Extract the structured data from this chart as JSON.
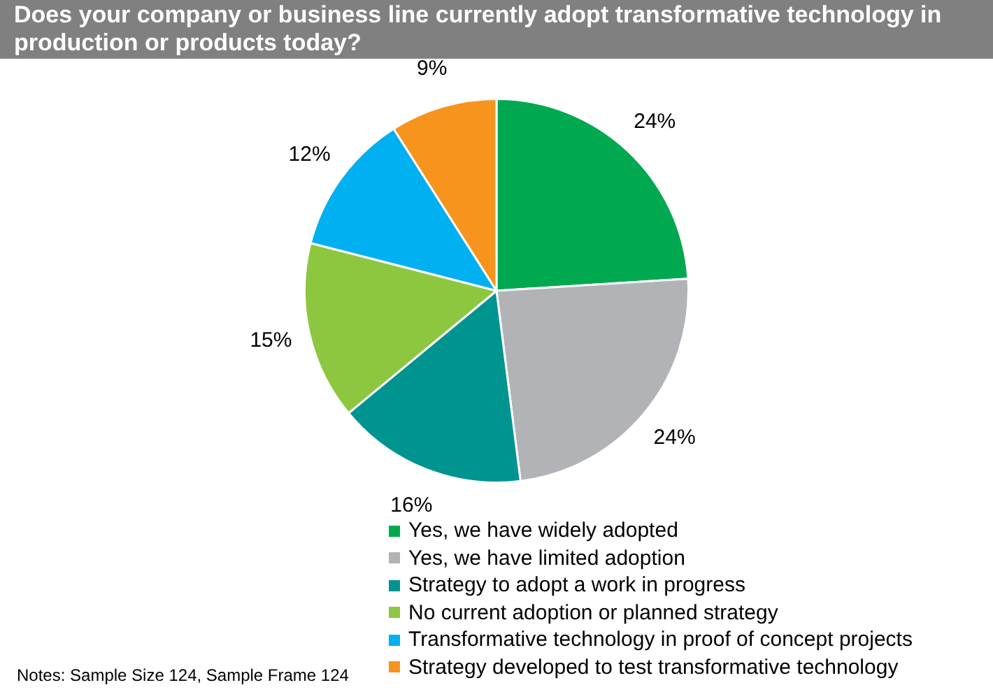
{
  "chart_data": {
    "type": "pie",
    "title": "Does your company or business line currently adopt transformative technology in production or products today?",
    "categories": [
      "Yes, we have widely adopted",
      "Yes, we have limited adoption",
      "Strategy to adopt a work in progress",
      "No current adoption or planned strategy",
      "Transformative technology in proof of concept projects",
      "Strategy developed to test transformative technology"
    ],
    "values": [
      24,
      24,
      16,
      15,
      12,
      9
    ],
    "colors": [
      "#00a94f",
      "#b1b3b6",
      "#009490",
      "#8dc63f",
      "#00b0f0",
      "#f7941d"
    ],
    "value_labels": [
      "24%",
      "24%",
      "16%",
      "15%",
      "12%",
      "9%"
    ],
    "legend": "bottom",
    "annotations": [
      "Notes: Sample Size 124, Sample Frame 124"
    ]
  }
}
